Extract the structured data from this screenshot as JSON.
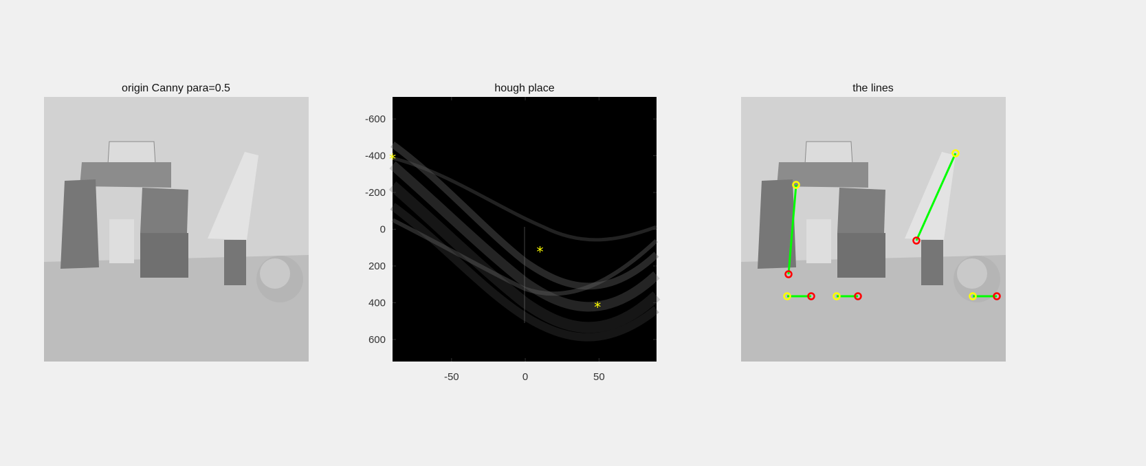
{
  "figure": {
    "background": "#f0f0f0",
    "panels": [
      {
        "title": "origin Canny para=0.5"
      },
      {
        "title": "hough place"
      },
      {
        "title": "the lines"
      }
    ]
  },
  "chart_data": [
    {
      "type": "image",
      "title": "origin Canny para=0.5",
      "content": "grayscale photo of wooden blocks, cylinder, wedge and sphere"
    },
    {
      "type": "heatmap",
      "title": "hough place",
      "xlabel": "",
      "ylabel": "",
      "xlim": [
        -90,
        89
      ],
      "ylim": [
        -720,
        720
      ],
      "y_reversed": true,
      "x_ticks": [
        -50,
        0,
        50
      ],
      "y_ticks": [
        -600,
        -400,
        -200,
        0,
        200,
        400,
        600
      ],
      "colormap": "gray",
      "peaks_marker": "*",
      "peaks_color": "#ffff00",
      "peaks": [
        {
          "theta": -90,
          "rho": -385
        },
        {
          "theta": 10,
          "rho": 120
        },
        {
          "theta": 49,
          "rho": 420
        }
      ]
    },
    {
      "type": "image-overlay",
      "title": "the lines",
      "line_color": "#00ff00",
      "start_marker_color": "#ffff00",
      "end_marker_color": "#ff0000",
      "segment_count": 5
    }
  ]
}
